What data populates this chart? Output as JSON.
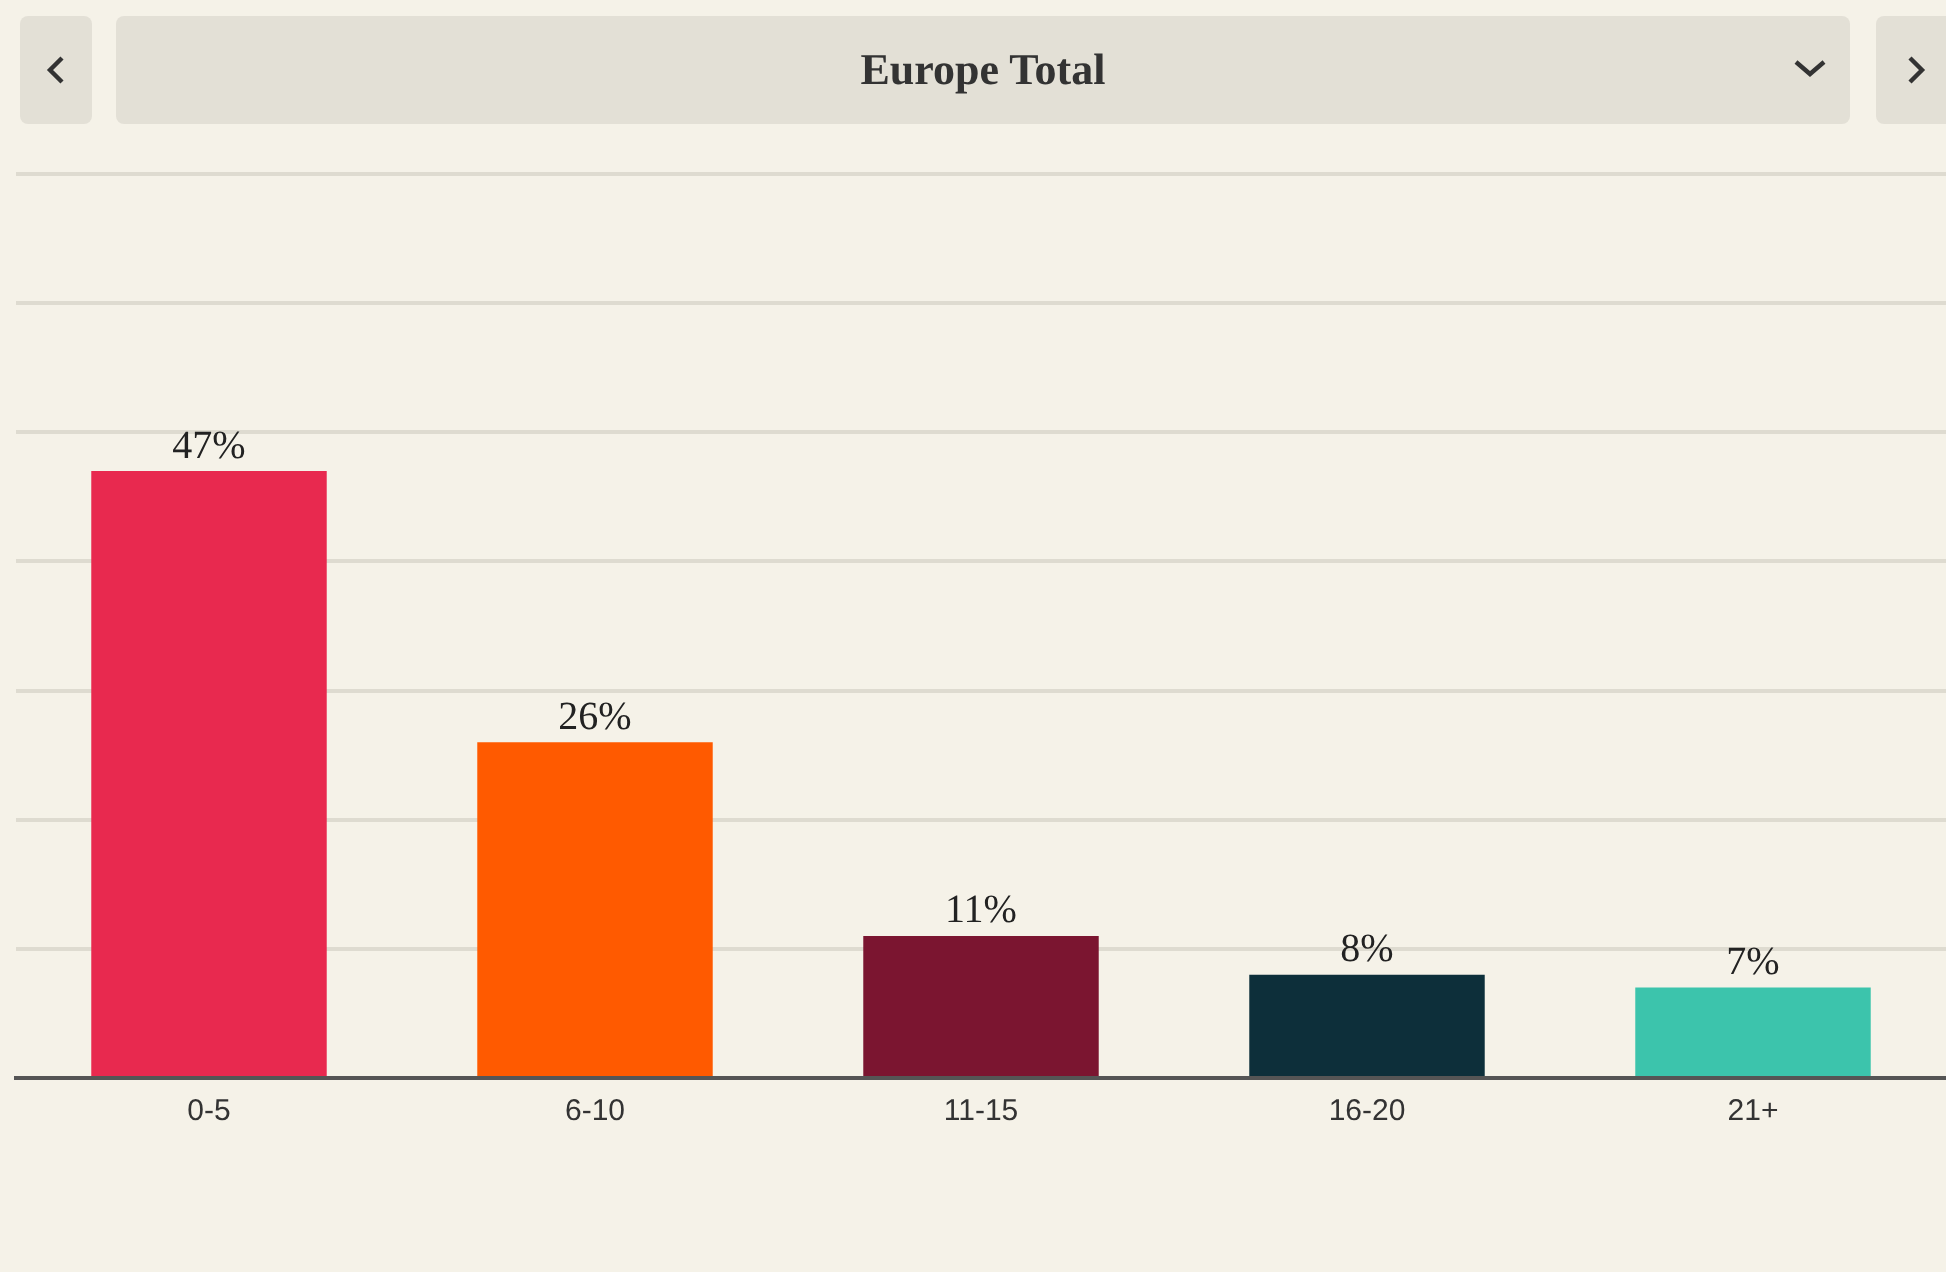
{
  "chart_data": {
    "type": "bar",
    "title": "Europe Total",
    "categories": [
      "0-5",
      "6-10",
      "11-15",
      "16-20",
      "21+"
    ],
    "values": [
      47,
      26,
      11,
      8,
      7
    ],
    "colors": [
      "#e8294f",
      "#ff5a00",
      "#7b1530",
      "#0d2f3a",
      "#3cc4ac"
    ],
    "value_labels": [
      "47%",
      "26%",
      "11%",
      "8%",
      "7%"
    ],
    "ylim": [
      0,
      70
    ],
    "yticks": [
      {
        "value": 0,
        "label": null
      },
      {
        "value": 10,
        "label": null
      },
      {
        "value": 20,
        "label": null
      },
      {
        "value": 30,
        "label": null
      },
      {
        "value": 40,
        "label": null
      },
      {
        "value": 50,
        "label": null
      },
      {
        "value": 60,
        "label": null
      },
      {
        "value": 70,
        "label": null
      }
    ],
    "tick_labels": "x",
    "grid": "y",
    "legend": false
  }
}
